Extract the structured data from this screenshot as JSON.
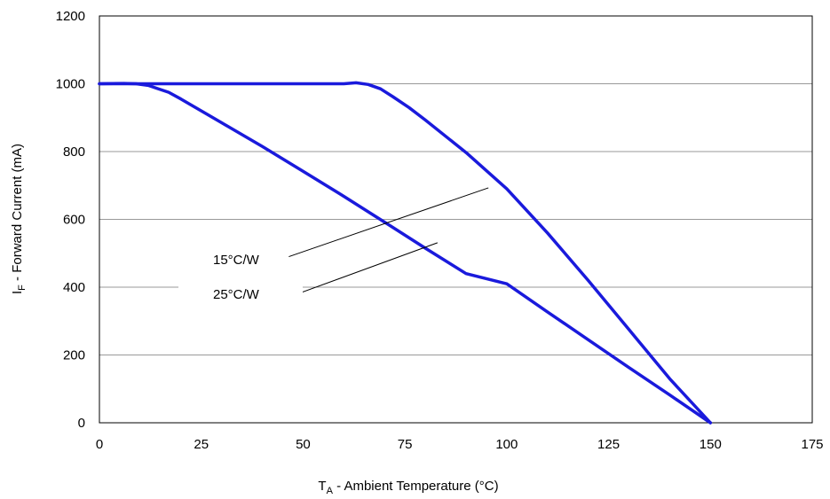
{
  "chart_data": {
    "type": "line",
    "title": "",
    "xlabel": {
      "main": "T",
      "sub": "A",
      "rest": " - Ambient Temperature (°C)"
    },
    "ylabel": {
      "main": "I",
      "sub": "F",
      "rest": " - Forward Current (mA)"
    },
    "xlim": [
      0,
      175
    ],
    "ylim": [
      0,
      1200
    ],
    "xticks": [
      0,
      25,
      50,
      75,
      100,
      125,
      150,
      175
    ],
    "yticks": [
      0,
      200,
      400,
      600,
      800,
      1000,
      1200
    ],
    "xtick_labels": [
      "0",
      "25",
      "50",
      "75",
      "100",
      "125",
      "150",
      "175"
    ],
    "ytick_labels": [
      "0",
      "200",
      "400",
      "600",
      "800",
      "1000",
      "1200"
    ],
    "grid": {
      "horizontal": true,
      "vertical": false
    },
    "line_color": "#1a1adc",
    "grid_color": "#999999",
    "series": [
      {
        "name": "15°C/W",
        "points": [
          [
            0,
            1000
          ],
          [
            10,
            1000
          ],
          [
            60,
            1000
          ],
          [
            63,
            1003
          ],
          [
            66,
            998
          ],
          [
            69,
            985
          ],
          [
            72,
            962
          ],
          [
            76,
            930
          ],
          [
            80,
            893
          ],
          [
            90,
            797
          ],
          [
            100,
            690
          ],
          [
            110,
            560
          ],
          [
            120,
            420
          ],
          [
            130,
            275
          ],
          [
            140,
            130
          ],
          [
            150,
            0
          ]
        ]
      },
      {
        "name": "25°C/W",
        "points": [
          [
            0,
            1000
          ],
          [
            6,
            1001
          ],
          [
            9,
            1000
          ],
          [
            12,
            995
          ],
          [
            14,
            987
          ],
          [
            17,
            975
          ],
          [
            20,
            955
          ],
          [
            30,
            885
          ],
          [
            40,
            815
          ],
          [
            50,
            742
          ],
          [
            60,
            668
          ],
          [
            70,
            592
          ],
          [
            80,
            515
          ],
          [
            90,
            440
          ],
          [
            100,
            410
          ],
          [
            110,
            327
          ],
          [
            120,
            245
          ],
          [
            130,
            163
          ],
          [
            140,
            82
          ],
          [
            150,
            0
          ]
        ]
      }
    ],
    "annotations": [
      {
        "label": "15°C/W",
        "leader_from": [
          46.5,
          490
        ],
        "leader_to": [
          95.5,
          693
        ]
      },
      {
        "label": "25°C/W",
        "leader_from": [
          47,
          373
        ],
        "leader_to": [
          83,
          531
        ]
      }
    ]
  }
}
